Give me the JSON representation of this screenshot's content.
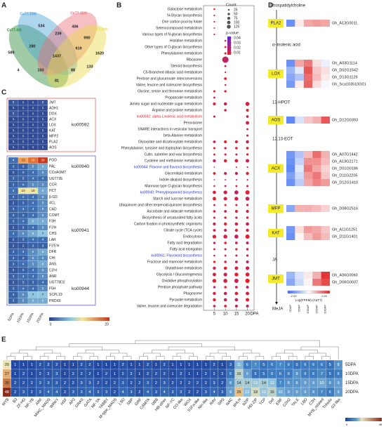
{
  "panel_labels": [
    "A",
    "B",
    "C",
    "D",
    "E"
  ],
  "venn": {
    "sets": [
      {
        "name": "CaT7-5/0",
        "color": "#2e8b3a"
      },
      {
        "name": "CaT7-10/0",
        "color": "#4aa3d8"
      },
      {
        "name": "CaT7-15/0",
        "color": "#e8707a"
      },
      {
        "name": "CaT7-20/0",
        "color": "#e8d94a"
      }
    ],
    "regions": [
      534,
      406,
      589,
      239,
      990,
      280,
      919,
      1437,
      1620,
      133,
      4,
      103,
      88,
      81
    ]
  },
  "dotplot": {
    "type": "scatter",
    "x": [
      5,
      10,
      15,
      20
    ],
    "xlim": [
      2,
      23
    ],
    "xticks": [
      5,
      10,
      15,
      20
    ],
    "xlabel": "DPA",
    "color_low": "#e8202a",
    "color_high": "#5a2ad8",
    "pathways": [
      {
        "name": "Galactose metabolism",
        "counts": [
          8,
          null,
          null,
          null
        ]
      },
      {
        "name": "N-Glycan biosynthesis",
        "counts": [
          6,
          null,
          null,
          null
        ]
      },
      {
        "name": "One carbon pool by folate",
        "counts": [
          6,
          null,
          null,
          null
        ]
      },
      {
        "name": "Selenocompound metabolism",
        "counts": [
          5,
          null,
          null,
          null
        ]
      },
      {
        "name": "Various types of N-glycan biosynthesis",
        "counts": [
          6,
          null,
          null,
          null
        ]
      },
      {
        "name": "Histidine metabolism",
        "counts": [
          null,
          8,
          null,
          null
        ]
      },
      {
        "name": "Other types of O-glycan biosynthesis",
        "counts": [
          null,
          10,
          null,
          null
        ]
      },
      {
        "name": "Phenylalanine metabolism",
        "counts": [
          null,
          12,
          null,
          null
        ]
      },
      {
        "name": "Ribosome",
        "counts": [
          null,
          100,
          null,
          null
        ]
      },
      {
        "name": "Steroid biosynthesis",
        "counts": [
          null,
          10,
          null,
          null
        ]
      },
      {
        "name": "C5-Branched dibasic acid metabolism",
        "counts": [
          null,
          6,
          null,
          null
        ]
      },
      {
        "name": "Pentose and glucuronate interconversions",
        "counts": [
          null,
          18,
          null,
          null
        ]
      },
      {
        "name": "Valine, leucine and isoleucine biosynthesis",
        "counts": [
          null,
          8,
          null,
          null
        ]
      },
      {
        "name": "Glycine, serine and threonine metabolism",
        "counts": [
          12,
          14,
          null,
          null
        ]
      },
      {
        "name": "Propanoate metabolism",
        "counts": [
          10,
          null,
          null,
          null
        ]
      },
      {
        "name": "Amino sugar and nucleotide sugar metabolism",
        "counts": [
          22,
          25,
          null,
          40
        ]
      },
      {
        "name": "Arginine and proline metabolism",
        "counts": [
          null,
          16,
          null,
          20
        ]
      },
      {
        "name": "ko00592: alpha-Linolenic acid metabolism",
        "color": "#e8202a",
        "counts": [
          12,
          null,
          null,
          18
        ]
      },
      {
        "name": "Peroxisome",
        "counts": [
          null,
          null,
          null,
          30
        ]
      },
      {
        "name": "SNARE interactions in vesicular transport",
        "counts": [
          null,
          null,
          null,
          10
        ]
      },
      {
        "name": "beta-Alanine metabolism",
        "counts": [
          null,
          null,
          null,
          12
        ]
      },
      {
        "name": "Glyoxylate and dicarboxylate metabolism",
        "counts": [
          18,
          20,
          22,
          25
        ]
      },
      {
        "name": "Phenylalanine, tyrosine and tryptophan biosynthesis",
        "counts": [
          12,
          14,
          16,
          18
        ]
      },
      {
        "name": "Cutin, suberine and wax biosynthesis",
        "counts": [
          10,
          12,
          12,
          14
        ]
      },
      {
        "name": "Cysteine and methionine metabolism",
        "counts": [
          24,
          26,
          30,
          32
        ]
      },
      {
        "name": "ko00944: Flavone and flavonol biosynthesis",
        "color": "#2a35c8",
        "counts": [
          4,
          null,
          5,
          6
        ]
      },
      {
        "name": "Glycerolipid metabolism",
        "counts": [
          18,
          20,
          22,
          24
        ]
      },
      {
        "name": "Indole alkaloid biosynthesis",
        "counts": [
          4,
          5,
          5,
          6
        ]
      },
      {
        "name": "Mannose type O-glycan biosynthesis",
        "counts": [
          8,
          10,
          10,
          12
        ]
      },
      {
        "name": "ko00940: Phenylpropanoid biosynthesis",
        "color": "#2a35c8",
        "counts": [
          28,
          35,
          40,
          45
        ]
      },
      {
        "name": "Starch and sucrose metabolism",
        "counts": [
          30,
          32,
          36,
          40
        ]
      },
      {
        "name": "Ubiquinone and other terpenoid-quinone biosynthesis",
        "counts": [
          10,
          12,
          12,
          14
        ]
      },
      {
        "name": "Ascorbate and aldarate metabolism",
        "counts": [
          16,
          18,
          20,
          22
        ]
      },
      {
        "name": "Biosynthesis of unsaturated fatty acids",
        "counts": [
          12,
          14,
          14,
          16
        ]
      },
      {
        "name": "Carbon fixation in photosynthetic organisms",
        "counts": [
          22,
          24,
          26,
          28
        ]
      },
      {
        "name": "Citrate cycle (TCA cycle)",
        "counts": [
          18,
          20,
          22,
          24
        ]
      },
      {
        "name": "Endocytosis",
        "counts": [
          34,
          38,
          40,
          44
        ]
      },
      {
        "name": "Fatty acid degradation",
        "counts": [
          14,
          16,
          18,
          20
        ]
      },
      {
        "name": "Fatty acid elongation",
        "counts": [
          10,
          12,
          14,
          16
        ]
      },
      {
        "name": "ko00941: Flavonoid biosynthesis",
        "color": "#2a35c8",
        "counts": [
          8,
          10,
          12,
          14
        ]
      },
      {
        "name": "Fructose and mannose metabolism",
        "counts": [
          14,
          16,
          18,
          20
        ]
      },
      {
        "name": "Glutathione metabolism",
        "counts": [
          24,
          26,
          30,
          34
        ]
      },
      {
        "name": "Glycolysis / Gluconeogenesis",
        "counts": [
          30,
          34,
          36,
          40
        ]
      },
      {
        "name": "Oxidative phosphorylation",
        "counts": [
          36,
          40,
          44,
          48
        ]
      },
      {
        "name": "Pentose phosphate pathway",
        "counts": [
          14,
          16,
          18,
          20
        ]
      },
      {
        "name": "Phagosome",
        "counts": [
          24,
          26,
          28,
          30
        ]
      },
      {
        "name": "Pyruvate metabolism",
        "counts": [
          24,
          26,
          28,
          32
        ]
      },
      {
        "name": "Valine, leucine and isoleucine degradation",
        "counts": [
          16,
          18,
          20,
          22
        ]
      }
    ],
    "size_legend": {
      "title": "Count",
      "values": [
        25,
        50,
        75,
        100,
        125
      ]
    },
    "color_legend": {
      "title": "p-value",
      "ticks": [
        0.04,
        0.03,
        0.02,
        0.01
      ]
    }
  },
  "genes_heatmap": {
    "columns": [
      "5DPA",
      "10DPA",
      "15DPA",
      "20DPA"
    ],
    "colorbar": [
      0,
      20
    ],
    "blocks": [
      {
        "labels": [
          "ko00592"
        ],
        "box_color": "#e04a4a",
        "genes": [
          "JMT",
          "ADH1",
          "DOX",
          "ACX",
          "LOX",
          "KAT",
          "MFP2",
          "PLA2",
          "AOS"
        ],
        "values": [
          [
            2,
            1,
            1,
            2
          ],
          [
            1,
            1,
            1,
            1
          ],
          [
            2,
            1,
            1,
            1
          ],
          [
            1,
            1,
            1,
            1
          ],
          [
            1,
            1,
            1,
            1
          ],
          [
            1,
            1,
            1,
            1
          ],
          [
            1,
            1,
            1,
            1
          ],
          [
            1,
            1,
            1,
            1
          ],
          [
            1,
            1,
            1,
            1
          ]
        ]
      },
      {
        "labels": [
          "ko00940",
          "ko00941",
          "ko00944"
        ],
        "box_color": "#4a4ad8",
        "genes": [
          "POD",
          "PAL",
          "CCoAOMT",
          "UGT72E",
          "CCR",
          "HCT",
          "β-GD",
          "4CL",
          "CAD",
          "COMT",
          "F3H",
          "F3'H",
          "CHS",
          "LAR",
          "F3'5'H",
          "DFR",
          "CHI",
          "ANS",
          "C3'H",
          "ANR",
          "UGT78D2",
          "F5H",
          "SCPL19",
          "PRDX6"
        ],
        "values": [
          [
            4,
            13,
            16,
            20
          ],
          [
            3,
            3,
            5,
            6
          ],
          [
            2,
            3,
            4,
            5
          ],
          [
            3,
            3,
            4,
            4
          ],
          [
            3,
            4,
            5,
            5
          ],
          [
            4,
            10,
            10,
            6
          ],
          [
            3,
            4,
            4,
            5
          ],
          [
            2,
            3,
            4,
            5
          ],
          [
            3,
            4,
            4,
            5
          ],
          [
            3,
            3,
            4,
            5
          ],
          [
            3,
            4,
            6,
            6
          ],
          [
            2,
            3,
            4,
            5
          ],
          [
            4,
            5,
            6,
            7
          ],
          [
            2,
            3,
            4,
            4
          ],
          [
            2,
            2,
            3,
            3
          ],
          [
            3,
            4,
            5,
            6
          ],
          [
            3,
            3,
            5,
            5
          ],
          [
            3,
            4,
            5,
            6
          ],
          [
            2,
            3,
            4,
            5
          ],
          [
            3,
            4,
            4,
            5
          ],
          [
            2,
            3,
            3,
            4
          ],
          [
            3,
            4,
            4,
            5
          ],
          [
            3,
            5,
            7,
            7
          ],
          [
            3,
            5,
            6,
            6
          ]
        ]
      }
    ]
  },
  "pathway": {
    "compounds": [
      "Phospatidylcholine",
      "α-linolenic acid",
      "13-HPOT",
      "12,13-EOT",
      "JA",
      "MeJA"
    ],
    "columns": [
      "0DAP",
      "5DAP",
      "10DAP",
      "15DAP",
      "20DAP"
    ],
    "colorbar": [
      {
        "value": -2,
        "label": "-2.00"
      },
      {
        "value": 2,
        "label": "2.00"
      }
    ],
    "colorbar_title": "Log(FPKM) (CaT7)",
    "enzymes": [
      {
        "name": "PLA2",
        "genes": [
          {
            "id": "Gh_A13G0011",
            "values": [
              -1.5,
              0.2,
              0.8,
              0.9,
              0.8
            ]
          }
        ]
      },
      {
        "name": "LOX",
        "genes": [
          {
            "id": "Gh_A03G1114",
            "values": [
              -1.5,
              0.8,
              1.2,
              0.3,
              -0.2
            ]
          },
          {
            "id": "Gh_D02G1542",
            "values": [
              -1,
              -0.3,
              1.5,
              0.5,
              0.3
            ]
          },
          {
            "id": "Gh_D13G1129",
            "values": [
              -1.2,
              -0.8,
              1.3,
              0.6,
              0.2
            ]
          },
          {
            "id": "Gh_Sca103510G01",
            "values": [
              -1.4,
              0.2,
              1.4,
              0.3,
              -0.1
            ]
          }
        ]
      },
      {
        "name": "AOS",
        "genes": [
          {
            "id": "Gh_D12G0393",
            "values": [
              -1.6,
              -0.4,
              0.5,
              0.7,
              1.5
            ]
          }
        ]
      },
      {
        "name": "ACX",
        "genes": [
          {
            "id": "Gh_A07G1442",
            "values": [
              -1.4,
              -0.8,
              0.6,
              1.3,
              0.7
            ]
          },
          {
            "id": "Gh_A13G2171",
            "values": [
              -1.5,
              -0.6,
              1,
              1,
              0.6
            ]
          },
          {
            "id": "Gh_D01G0186",
            "values": [
              -1.6,
              -0.3,
              1.2,
              0.8,
              0.4
            ]
          },
          {
            "id": "Gh_D11G2205",
            "values": [
              -1.3,
              -0.5,
              0.9,
              1.2,
              0.5
            ]
          },
          {
            "id": "Gh_D12G1410",
            "values": [
              -1.5,
              -0.7,
              0.8,
              1.1,
              0.9
            ]
          }
        ]
      },
      {
        "name": "MFP",
        "genes": [
          {
            "id": "Gh_D08G2516",
            "values": [
              -1.2,
              0.7,
              0.7,
              0.6,
              0.4
            ]
          }
        ]
      },
      {
        "name": "KAT",
        "genes": [
          {
            "id": "Gh_A11G1251",
            "values": [
              -1.4,
              0.3,
              0.9,
              0.8,
              0.5
            ]
          },
          {
            "id": "Gh_D11G1401",
            "values": [
              -1.5,
              0.1,
              0.6,
              0.9,
              0.6
            ]
          }
        ]
      },
      {
        "name": "JMT",
        "genes": [
          {
            "id": "Gh_A06G0060",
            "values": [
              -1,
              -0.4,
              0.2,
              0.7,
              1.8
            ]
          },
          {
            "id": "Gh_D06G0037",
            "values": [
              -1.2,
              -0.5,
              0.1,
              1.2,
              1.6
            ]
          }
        ]
      }
    ]
  },
  "tf_heatmap": {
    "families": [
      "MYB",
      "B3",
      "ZF-HD",
      "NF-YB",
      "ARF",
      "MIKC_MADS",
      "WRKY",
      "HSF",
      "AP2",
      "GRAS",
      "GATA",
      "NF-YA",
      "YABBY",
      "M-type_MADS",
      "LSD",
      "SBP",
      "GRF",
      "CAMTA",
      "DBB",
      "HB-other",
      "NF-YC",
      "CO-like",
      "WOX",
      "S1Fa-like",
      "Nin-like",
      "RAV",
      "SRS",
      "NAC",
      "bHLH",
      "bZIP",
      "HD-ZIP",
      "TCP",
      "Dof",
      "ERF",
      "C2H2",
      "TALE",
      "LBD",
      "C3H",
      "MYB_related",
      "Trihelix",
      "G2-like"
    ],
    "rows": [
      "5DPA",
      "10DPA",
      "15DPA",
      "20DPA"
    ],
    "colorbar": [
      0,
      48
    ],
    "values": [
      [
        20,
        1,
        1,
        1,
        2,
        2,
        2,
        1,
        1,
        2,
        2,
        1,
        1,
        1,
        2,
        1,
        1,
        2,
        1,
        2,
        1,
        1,
        1,
        1,
        1,
        2,
        1,
        3,
        11,
        6,
        7,
        5,
        6,
        7,
        6,
        5,
        6,
        6,
        6,
        5,
        8
      ],
      [
        27,
        1,
        2,
        1,
        2,
        2,
        3,
        1,
        2,
        2,
        2,
        1,
        2,
        1,
        2,
        2,
        1,
        2,
        2,
        2,
        1,
        2,
        1,
        1,
        2,
        2,
        2,
        5,
        16,
        9,
        5,
        5,
        6,
        6,
        6,
        8,
        6,
        6,
        7,
        5,
        6
      ],
      [
        35,
        2,
        2,
        2,
        3,
        3,
        3,
        2,
        2,
        3,
        3,
        2,
        2,
        2,
        3,
        2,
        2,
        3,
        2,
        3,
        2,
        2,
        2,
        2,
        2,
        3,
        2,
        8,
        14,
        14,
        13,
        14,
        12,
        7,
        8,
        8,
        9,
        9,
        10,
        8,
        9
      ],
      [
        48,
        2,
        3,
        2,
        3,
        4,
        4,
        2,
        3,
        3,
        4,
        3,
        3,
        2,
        4,
        3,
        2,
        4,
        3,
        4,
        3,
        3,
        2,
        2,
        3,
        4,
        3,
        9,
        25,
        12,
        18,
        13,
        16,
        10,
        9,
        9,
        9,
        8,
        7,
        6,
        9
      ]
    ]
  }
}
